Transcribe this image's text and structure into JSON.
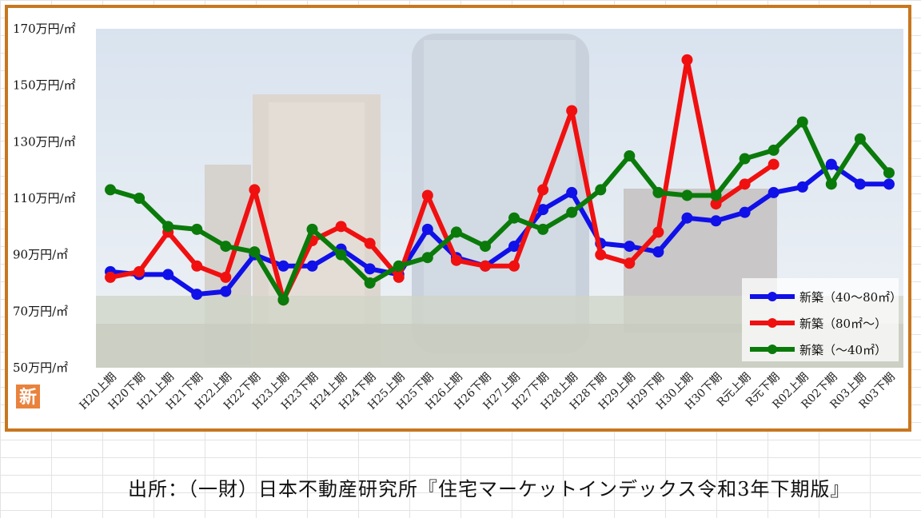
{
  "source": "出所：（一財）日本不動産研究所『住宅マーケットインデックス令和3年下期版』",
  "badge_text": "新",
  "colors": {
    "frame": "#c8771f",
    "badge": "#e9823d",
    "blue": "#1010e8",
    "red": "#f01010",
    "green": "#0a7a0a"
  },
  "chart_data": {
    "type": "line",
    "title": "",
    "xlabel": "",
    "ylabel": "",
    "ylim": [
      50,
      170
    ],
    "yticks": [
      170,
      150,
      130,
      110,
      90,
      70,
      50
    ],
    "ytick_suffix": "万円/㎡",
    "categories": [
      "H20上期",
      "H20下期",
      "H21上期",
      "H21下期",
      "H22上期",
      "H22下期",
      "H23上期",
      "H23下期",
      "H24上期",
      "H24下期",
      "H25上期",
      "H25下期",
      "H26上期",
      "H26下期",
      "H27上期",
      "H27下期",
      "H28上期",
      "H28下期",
      "H29上期",
      "H29下期",
      "H30上期",
      "H30下期",
      "R元上期",
      "R元下期",
      "R02上期",
      "R02下期",
      "R03上期",
      "R03下期"
    ],
    "legend_position": "bottom-right",
    "series": [
      {
        "name": "新築（40～80㎡）",
        "color": "#1010e8",
        "values": [
          84,
          83,
          83,
          76,
          77,
          90,
          86,
          86,
          92,
          85,
          83,
          99,
          89,
          86,
          93,
          106,
          112,
          94,
          93,
          91,
          103,
          102,
          105,
          112,
          114,
          122,
          115,
          115
        ]
      },
      {
        "name": "新築（80㎡～）",
        "color": "#f01010",
        "values": [
          82,
          84,
          98,
          86,
          82,
          113,
          74,
          95,
          100,
          94,
          82,
          111,
          88,
          86,
          86,
          113,
          141,
          90,
          87,
          98,
          159,
          108,
          115,
          122,
          null,
          null,
          null,
          null
        ]
      },
      {
        "name": "新築（～40㎡）",
        "color": "#0a7a0a",
        "values": [
          113,
          110,
          100,
          99,
          93,
          91,
          74,
          99,
          90,
          80,
          86,
          89,
          98,
          93,
          103,
          99,
          105,
          113,
          125,
          112,
          111,
          111,
          124,
          127,
          137,
          115,
          131,
          119
        ]
      }
    ]
  }
}
